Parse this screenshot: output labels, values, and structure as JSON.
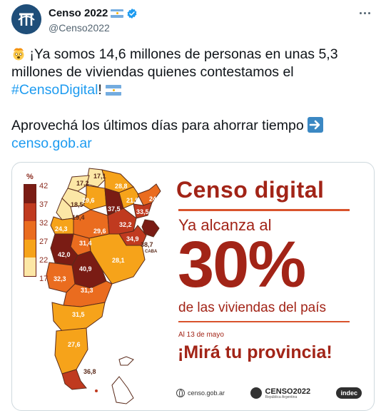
{
  "tweet": {
    "display_name": "Censo 2022",
    "handle": "@Censo2022",
    "more_icon": "more-horizontal-icon",
    "avatar_icon": "censo-logo-icon",
    "text": {
      "line1_pre": " ¡Ya somos 14,6 millones de personas en unas 5,3 millones de viviendas quienes contestamos el ",
      "hashtag": "#CensoDigital",
      "line1_post": "! ",
      "line2": "Aprovechá los últimos días para ahorrar tiempo ",
      "link": "censo.gob.ar"
    }
  },
  "infographic": {
    "title": "Censo digital",
    "subtitle": "Ya alcanza al",
    "big_value": "30%",
    "subtitle2": "de las viviendas del país",
    "date": "Al 13 de mayo",
    "cta": "¡Mirá tu provincia!",
    "legend": {
      "unit": "%",
      "ticks": [
        "42",
        "37",
        "32",
        "27",
        "22",
        "17"
      ],
      "colors": [
        "#7a1c14",
        "#c03a1f",
        "#ea6c1f",
        "#f6a31a",
        "#fce7a6"
      ]
    },
    "provinces": [
      {
        "label": "17,1"
      },
      {
        "label": "17,2"
      },
      {
        "label": "28,8"
      },
      {
        "label": "29,6"
      },
      {
        "label": "37,5"
      },
      {
        "label": "18,5"
      },
      {
        "label": "21,5"
      },
      {
        "label": "24,8"
      },
      {
        "label": "33,5"
      },
      {
        "label": "19,4"
      },
      {
        "label": "24,3"
      },
      {
        "label": "29,6"
      },
      {
        "label": "32,2"
      },
      {
        "label": "34,9"
      },
      {
        "label": "31,4"
      },
      {
        "label": "38,7"
      },
      {
        "label": "CABA"
      },
      {
        "label": "42,0"
      },
      {
        "label": "28,1"
      },
      {
        "label": "40,9"
      },
      {
        "label": "32,3"
      },
      {
        "label": "31,3"
      },
      {
        "label": "31,5"
      },
      {
        "label": "27,6"
      },
      {
        "label": "36,8"
      }
    ],
    "footer": {
      "site": "censo.gob.ar",
      "brand": "CENSO2022",
      "brand_sub": "República Argentina",
      "indec": "indec"
    }
  }
}
